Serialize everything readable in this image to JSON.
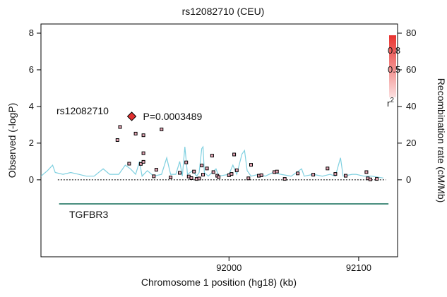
{
  "chart_data": {
    "type": "scatter",
    "title": "rs12082710 (CEU)",
    "xlabel": "Chromosome 1 position (hg18) (kb)",
    "ylabel": "Observed (-logP)",
    "y2label": "Recombination rate (cM/Mb)",
    "xlim": [
      91855,
      92130
    ],
    "ylim": [
      -4.2,
      8.5
    ],
    "y2lim": [
      -42,
      85
    ],
    "x_ticks": [
      92000,
      92100
    ],
    "y_ticks": [
      0,
      2,
      4,
      6,
      8
    ],
    "y2_ticks": [
      0,
      20,
      40,
      60,
      80
    ],
    "baseline_y": 0,
    "legend": {
      "title": "r2",
      "title_base": "r",
      "title_sup": "2",
      "labels": [
        "0.8",
        "0.5"
      ],
      "position": "top-right",
      "colors": [
        "#fbe0e0",
        "#e8322f"
      ]
    },
    "lead_snp": {
      "name": "rs12082710",
      "pvalue_label": "P=0.0003489",
      "x": 91925,
      "y": 3.46,
      "color": "#e03030"
    },
    "snps": [
      {
        "x": 91914,
        "y": 2.17
      },
      {
        "x": 91916,
        "y": 2.88
      },
      {
        "x": 91923,
        "y": 0.88
      },
      {
        "x": 91928,
        "y": 2.52
      },
      {
        "x": 91932,
        "y": 0.87
      },
      {
        "x": 91934,
        "y": 0.98
      },
      {
        "x": 91934,
        "y": 1.45
      },
      {
        "x": 91934,
        "y": 2.43
      },
      {
        "x": 91942,
        "y": 0.19
      },
      {
        "x": 91944,
        "y": 0.55
      },
      {
        "x": 91948,
        "y": 2.75
      },
      {
        "x": 91955,
        "y": 0.13
      },
      {
        "x": 91962,
        "y": 0.38
      },
      {
        "x": 91967,
        "y": 0.95
      },
      {
        "x": 91969,
        "y": 0.18
      },
      {
        "x": 91971,
        "y": 0.09
      },
      {
        "x": 91973,
        "y": 0.45
      },
      {
        "x": 91975,
        "y": 0.05
      },
      {
        "x": 91977,
        "y": 0.07
      },
      {
        "x": 91979,
        "y": 0.78
      },
      {
        "x": 91980,
        "y": 0.28
      },
      {
        "x": 91983,
        "y": 0.62
      },
      {
        "x": 91987,
        "y": 1.32
      },
      {
        "x": 91988,
        "y": 0.42
      },
      {
        "x": 91991,
        "y": 0.22
      },
      {
        "x": 91992,
        "y": 0.15
      },
      {
        "x": 92000,
        "y": 0.25
      },
      {
        "x": 92002,
        "y": 0.32
      },
      {
        "x": 92004,
        "y": 1.38
      },
      {
        "x": 92006,
        "y": 0.52
      },
      {
        "x": 92015,
        "y": 0.08
      },
      {
        "x": 92017,
        "y": 0.82
      },
      {
        "x": 92023,
        "y": 0.22
      },
      {
        "x": 92025,
        "y": 0.25
      },
      {
        "x": 92035,
        "y": 0.42
      },
      {
        "x": 92037,
        "y": 0.45
      },
      {
        "x": 92043,
        "y": 0.05
      },
      {
        "x": 92053,
        "y": 0.35
      },
      {
        "x": 92065,
        "y": 0.28
      },
      {
        "x": 92076,
        "y": 0.62
      },
      {
        "x": 92082,
        "y": 0.32
      },
      {
        "x": 92090,
        "y": 0.22
      },
      {
        "x": 92106,
        "y": 0.42
      },
      {
        "x": 92107,
        "y": 0.08
      },
      {
        "x": 92109,
        "y": 0.02
      },
      {
        "x": 92114,
        "y": 0.05
      }
    ],
    "recombination": [
      [
        91855,
        2
      ],
      [
        91860,
        5
      ],
      [
        91864,
        8
      ],
      [
        91866,
        4
      ],
      [
        91872,
        3
      ],
      [
        91878,
        4
      ],
      [
        91884,
        3
      ],
      [
        91890,
        2
      ],
      [
        91896,
        2
      ],
      [
        91903,
        6
      ],
      [
        91908,
        3
      ],
      [
        91915,
        3
      ],
      [
        91920,
        8
      ],
      [
        91924,
        6
      ],
      [
        91928,
        3
      ],
      [
        91931,
        10
      ],
      [
        91933,
        2
      ],
      [
        91937,
        5
      ],
      [
        91942,
        2
      ],
      [
        91948,
        3
      ],
      [
        91952,
        12
      ],
      [
        91955,
        3
      ],
      [
        91959,
        3
      ],
      [
        91962,
        10
      ],
      [
        91964,
        2
      ],
      [
        91966,
        18
      ],
      [
        91968,
        3
      ],
      [
        91972,
        5
      ],
      [
        91975,
        2
      ],
      [
        91977,
        4
      ],
      [
        91979,
        17
      ],
      [
        91980,
        18
      ],
      [
        91981,
        4
      ],
      [
        91984,
        2
      ],
      [
        91990,
        6
      ],
      [
        91992,
        2
      ],
      [
        92000,
        3
      ],
      [
        92003,
        8
      ],
      [
        92006,
        3
      ],
      [
        92010,
        14
      ],
      [
        92012,
        16
      ],
      [
        92014,
        5
      ],
      [
        92017,
        2
      ],
      [
        92023,
        3
      ],
      [
        92028,
        2
      ],
      [
        92034,
        4
      ],
      [
        92040,
        3
      ],
      [
        92048,
        2
      ],
      [
        92056,
        6
      ],
      [
        92058,
        2
      ],
      [
        92065,
        3
      ],
      [
        92072,
        2
      ],
      [
        92078,
        3
      ],
      [
        92082,
        2
      ],
      [
        92086,
        12
      ],
      [
        92088,
        2
      ],
      [
        92095,
        3
      ],
      [
        92098,
        3
      ],
      [
        92104,
        2
      ],
      [
        92110,
        2
      ],
      [
        92119,
        1
      ]
    ],
    "gene": {
      "name": "TGFBR3",
      "start": 91869,
      "end": 92123,
      "color": "#0f6a55"
    },
    "colors": {
      "recombination_line": "#7fd0e0",
      "snp_marker": "#e8a6b6",
      "marker_outline": "#000000",
      "baseline": "#000000"
    }
  }
}
